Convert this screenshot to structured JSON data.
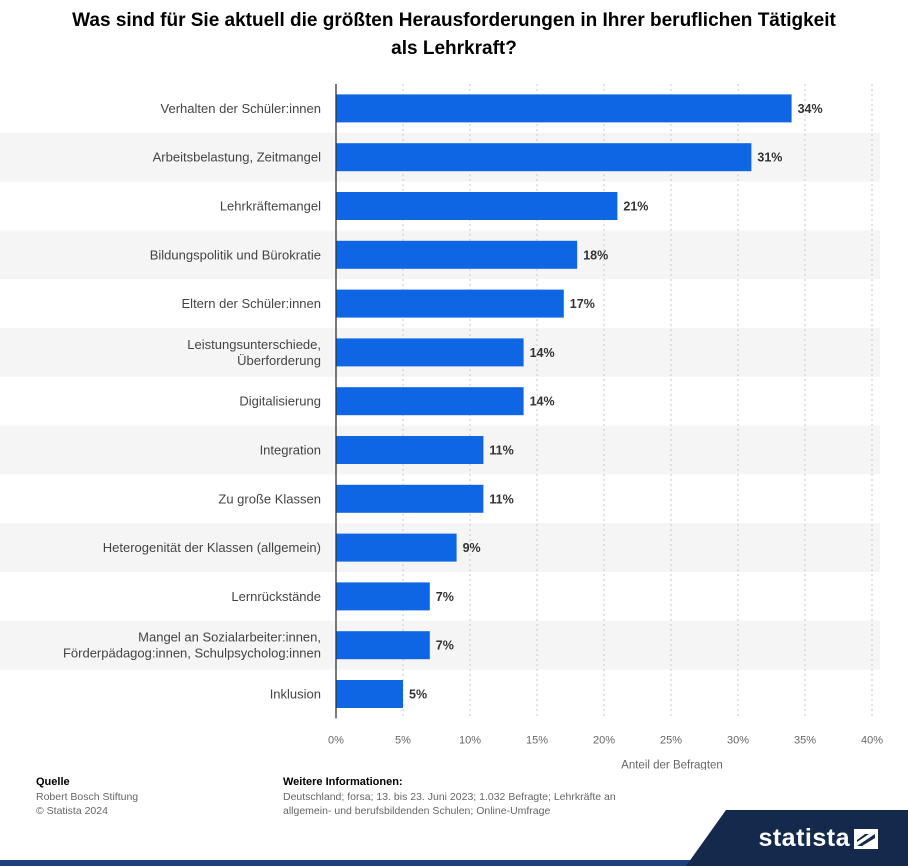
{
  "title": "Was sind für Sie aktuell die größten Herausforderungen in Ihrer beruflichen Tätigkeit als Lehrkraft?",
  "chart_data": {
    "type": "bar",
    "orientation": "horizontal",
    "categories": [
      "Verhalten der Schüler:innen",
      "Arbeitsbelastung, Zeitmangel",
      "Lehrkräftemangel",
      "Bildungspolitik und Bürokratie",
      "Eltern der Schüler:innen",
      "Leistungsunterschiede,\nÜberforderung",
      "Digitalisierung",
      "Integration",
      "Zu große Klassen",
      "Heterogenität der Klassen (allgemein)",
      "Lernrückstände",
      "Mangel an Sozialarbeiter:innen,\nFörderpädagog:innen, Schulpsycholog:innen",
      "Inklusion"
    ],
    "values": [
      34,
      31,
      21,
      18,
      17,
      14,
      14,
      11,
      11,
      9,
      7,
      7,
      5
    ],
    "value_suffix": "%",
    "xlabel": "Anteil der Befragten",
    "xlim": [
      0,
      40
    ],
    "xticks": [
      0,
      5,
      10,
      15,
      20,
      25,
      30,
      35,
      40
    ],
    "xtick_labels": [
      "0%",
      "5%",
      "10%",
      "15%",
      "20%",
      "25%",
      "30%",
      "35%",
      "40%"
    ],
    "grid": true,
    "bar_color": "#0e66e4",
    "stripe_color": "#f5f5f5"
  },
  "footer": {
    "source_heading": "Quelle",
    "source": "Robert Bosch Stiftung",
    "copyright": "© Statista 2024",
    "info_heading": "Weitere Informationen:",
    "info": "Deutschland; forsa; 13. bis 23. Juni 2023; 1.032 Befragte; Lehrkräfte an allgemein- und berufsbildenden Schulen; Online-Umfrage"
  },
  "brand": {
    "name": "statista",
    "color": "#15294d"
  }
}
